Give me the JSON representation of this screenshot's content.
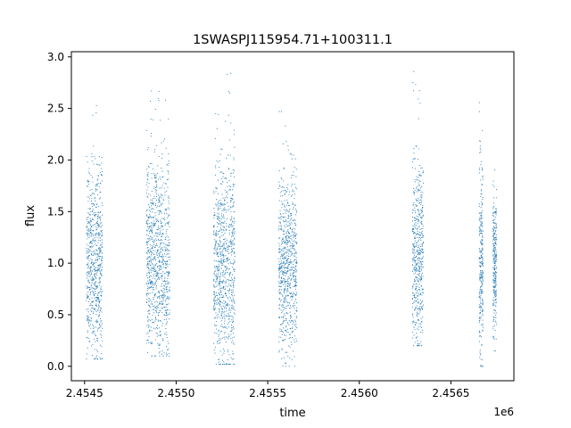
{
  "chart_data": {
    "type": "scatter",
    "title": "1SWASPJ115954.71+100311.1",
    "xlabel": "time",
    "ylabel": "flux",
    "x_offset_label": "1e6",
    "xlim": [
      2454428,
      2456844
    ],
    "ylim": [
      -0.14,
      3.05
    ],
    "xticks": [
      2454500,
      2455000,
      2455500,
      2456000,
      2456500
    ],
    "xtick_labels": [
      "2.4545",
      "2.4550",
      "2.4555",
      "2.4560",
      "2.4565"
    ],
    "yticks": [
      0.0,
      0.5,
      1.0,
      1.5,
      2.0,
      2.5,
      3.0
    ],
    "ytick_labels": [
      "0.0",
      "0.5",
      "1.0",
      "1.5",
      "2.0",
      "2.5",
      "3.0"
    ],
    "grid": false,
    "marker_color": "#1f77b4",
    "series": [
      {
        "observing_seasons": [
          {
            "x_range": [
              2454510,
              2454598
            ],
            "flux_center": 1.0,
            "flux_min": 0.07,
            "flux_max": 2.77
          },
          {
            "x_range": [
              2454838,
              2454965
            ],
            "flux_center": 1.05,
            "flux_min": 0.1,
            "flux_max": 2.85
          },
          {
            "x_range": [
              2455205,
              2455320
            ],
            "flux_center": 1.0,
            "flux_min": 0.02,
            "flux_max": 2.85
          },
          {
            "x_range": [
              2455560,
              2455660
            ],
            "flux_center": 1.0,
            "flux_min": 0.0,
            "flux_max": 2.5
          },
          {
            "x_range": [
              2456290,
              2456350
            ],
            "flux_center": 1.1,
            "flux_min": 0.2,
            "flux_max": 2.9
          },
          {
            "x_range": [
              2456655,
              2456675
            ],
            "flux_center": 1.0,
            "flux_min": 0.0,
            "flux_max": 2.85
          },
          {
            "x_range": [
              2456730,
              2456750
            ],
            "flux_center": 1.0,
            "flux_min": 0.15,
            "flux_max": 2.15
          }
        ]
      }
    ]
  }
}
